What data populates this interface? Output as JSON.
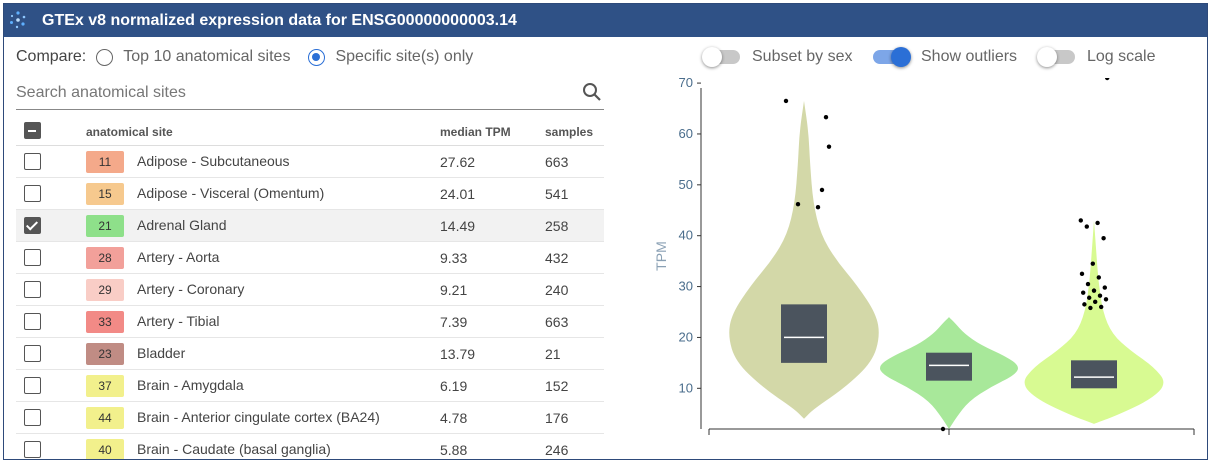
{
  "title": "GTEx v8 normalized expression data for ENSG00000000003.14",
  "compare": {
    "label": "Compare:",
    "option1": "Top 10 anatomical sites",
    "option2": "Specific site(s) only",
    "selected": "option2"
  },
  "toggles": {
    "subset_by_sex": {
      "label": "Subset by sex",
      "on": false
    },
    "show_outliers": {
      "label": "Show outliers",
      "on": true
    },
    "log_scale": {
      "label": "Log scale",
      "on": false
    }
  },
  "search": {
    "placeholder": "Search anatomical sites"
  },
  "table": {
    "headers": {
      "site": "anatomical site",
      "median": "median TPM",
      "samples": "samples"
    },
    "rows": [
      {
        "n": "11",
        "color": "#f4a98a",
        "site": "Adipose - Subcutaneous",
        "median": "27.62",
        "samples": "663",
        "checked": false
      },
      {
        "n": "15",
        "color": "#f6c98e",
        "site": "Adipose - Visceral (Omentum)",
        "median": "24.01",
        "samples": "541",
        "checked": false
      },
      {
        "n": "21",
        "color": "#8ee08a",
        "site": "Adrenal Gland",
        "median": "14.49",
        "samples": "258",
        "checked": true
      },
      {
        "n": "28",
        "color": "#f2a09a",
        "site": "Artery - Aorta",
        "median": "9.33",
        "samples": "432",
        "checked": false
      },
      {
        "n": "29",
        "color": "#f9cdc6",
        "site": "Artery - Coronary",
        "median": "9.21",
        "samples": "240",
        "checked": false
      },
      {
        "n": "33",
        "color": "#f28a86",
        "site": "Artery - Tibial",
        "median": "7.39",
        "samples": "663",
        "checked": false
      },
      {
        "n": "23",
        "color": "#c08c84",
        "site": "Bladder",
        "median": "13.79",
        "samples": "21",
        "checked": false
      },
      {
        "n": "37",
        "color": "#f2f08c",
        "site": "Brain - Amygdala",
        "median": "6.19",
        "samples": "152",
        "checked": false
      },
      {
        "n": "44",
        "color": "#f2f08c",
        "site": "Brain - Anterior cingulate cortex (BA24)",
        "median": "4.78",
        "samples": "176",
        "checked": false
      },
      {
        "n": "40",
        "color": "#f2f08c",
        "site": "Brain - Caudate (basal ganglia)",
        "median": "5.88",
        "samples": "246",
        "checked": false
      }
    ]
  },
  "chart_data": {
    "type": "violin",
    "ylabel": "TPM",
    "ylim": [
      2,
      71
    ],
    "yticks": [
      "10",
      "20",
      "30",
      "40",
      "50",
      "60",
      "70"
    ],
    "series": [
      {
        "color": "#d3d8a8",
        "range": [
          4,
          66.5
        ],
        "q1": 15,
        "median": 20,
        "q3": 26.5,
        "outliers": [
          66.5,
          63.3,
          57.5,
          49,
          46.2,
          45.6
        ]
      },
      {
        "color": "#a8e89a",
        "range": [
          2,
          24
        ],
        "q1": 11.5,
        "median": 14.5,
        "q3": 17,
        "outliers": [
          2
        ]
      },
      {
        "color": "#d8fa92",
        "range": [
          3,
          43
        ],
        "q1": 10,
        "median": 12.2,
        "q3": 15.5,
        "outliers": [
          43,
          42.5,
          41.8,
          39.5,
          34.5,
          32.5,
          31.8,
          30.5,
          29.8,
          29.2,
          28.8,
          28.2,
          27.8,
          27.5,
          27,
          26.5,
          26,
          25.8,
          71.2
        ]
      }
    ]
  }
}
